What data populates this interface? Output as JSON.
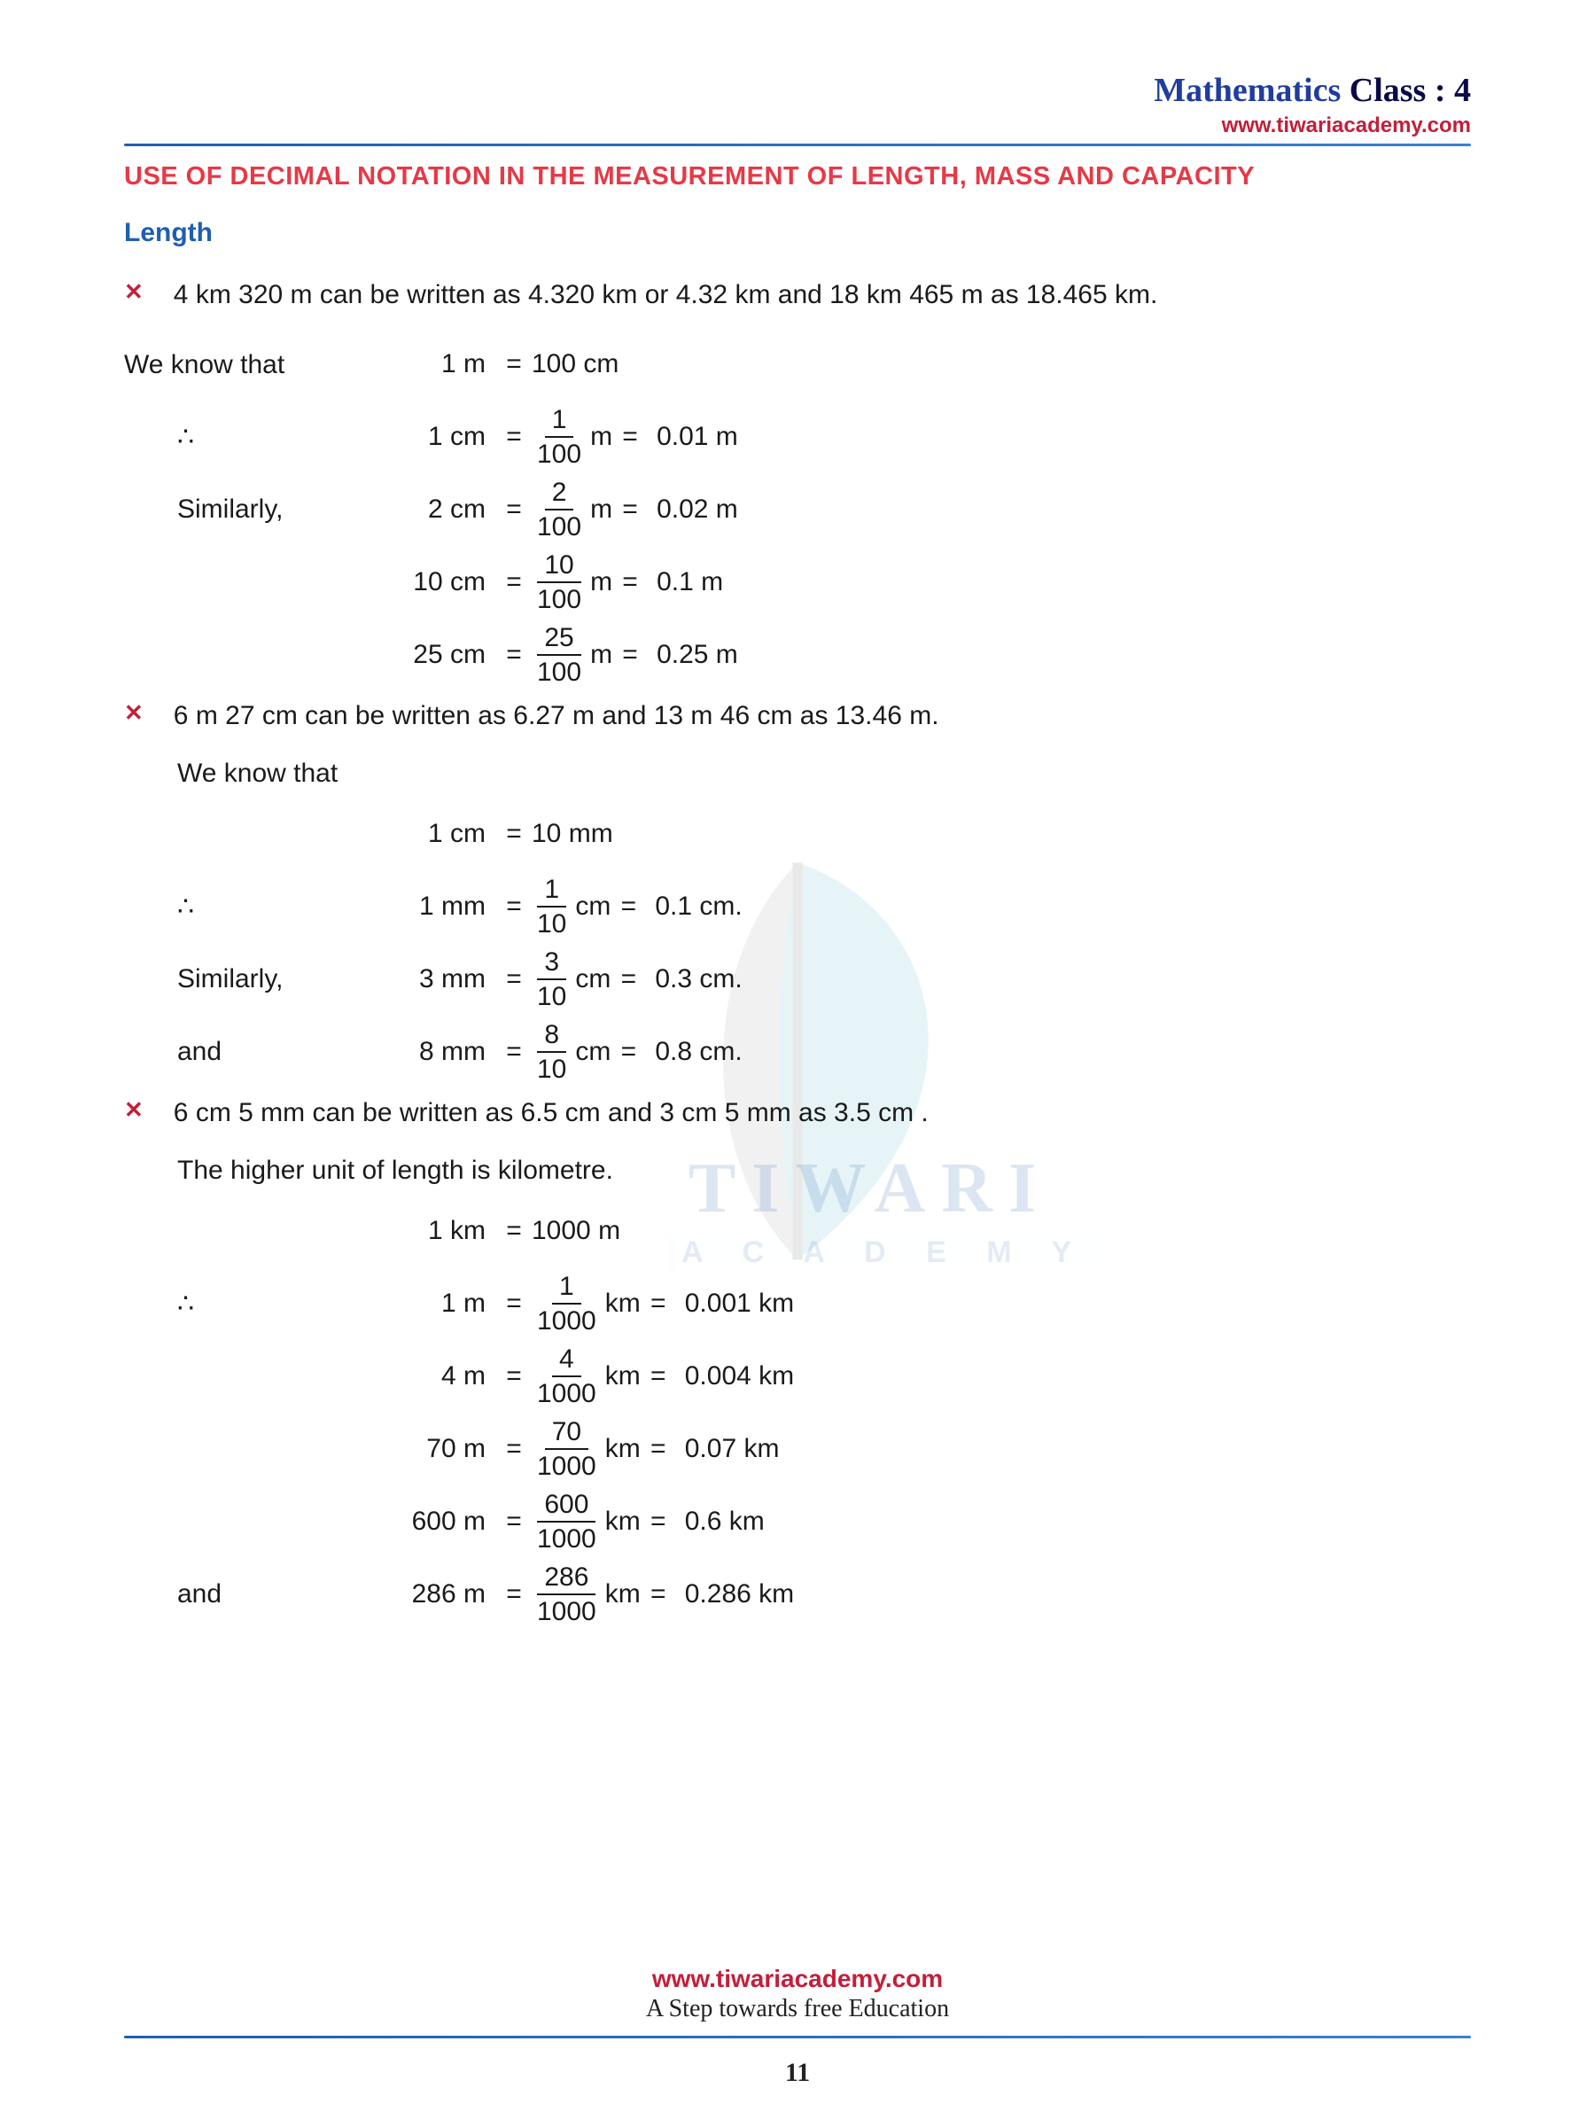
{
  "header": {
    "title_prefix": "Mathematics ",
    "title_suffix": "Class : 4",
    "url": "www.tiwariacademy.com"
  },
  "section_title": "USE OF DECIMAL NOTATION IN THE MEASUREMENT OF LENGTH, MASS AND CAPACITY",
  "sub_heading": "Length",
  "bullets": [
    "4 km 320 m can be written as 4.320 km or 4.32 km and 18 km 465 m as 18.465 km.",
    "6 m 27 cm can be written as 6.27 m and 13 m 46 cm as 13.46 m.",
    "6 cm 5 mm can be written as 6.5 cm and  3 cm 5 mm as 3.5 cm ."
  ],
  "intro_line": "We know that",
  "know_line2": "We know that",
  "higher_unit_line": "The higher unit of length is kilometre.",
  "labels": {
    "therefore": "∴",
    "similarly": "Similarly,",
    "and": "and"
  },
  "block1": {
    "base": {
      "lhs": "1 m",
      "rhs": "100 cm"
    },
    "rows": [
      {
        "label": "therefore",
        "lhs": "1 cm",
        "num": "1",
        "den": "100",
        "unit": "m",
        "dec": "0.01 m"
      },
      {
        "label": "similarly",
        "lhs": "2 cm",
        "num": "2",
        "den": "100",
        "unit": "m",
        "dec": "0.02 m"
      },
      {
        "label": "",
        "lhs": "10 cm",
        "num": "10",
        "den": "100",
        "unit": "m",
        "dec": "0.1 m"
      },
      {
        "label": "",
        "lhs": "25 cm",
        "num": "25",
        "den": "100",
        "unit": "m",
        "dec": "0.25 m"
      }
    ]
  },
  "block2": {
    "base": {
      "lhs": "1 cm",
      "rhs": "10 mm"
    },
    "rows": [
      {
        "label": "therefore",
        "lhs": "1 mm",
        "num": "1",
        "den": "10",
        "unit": "cm",
        "dec": "0.1 cm."
      },
      {
        "label": "similarly",
        "lhs": "3 mm",
        "num": "3",
        "den": "10",
        "unit": "cm",
        "dec": "0.3 cm."
      },
      {
        "label": "and",
        "lhs": "8 mm",
        "num": "8",
        "den": "10",
        "unit": "cm",
        "dec": "0.8 cm."
      }
    ]
  },
  "block3": {
    "base": {
      "lhs": "1 km",
      "rhs": "1000 m"
    },
    "rows": [
      {
        "label": "therefore",
        "lhs": "1 m",
        "num": "1",
        "den": "1000",
        "unit": "km",
        "dec": "0.001 km"
      },
      {
        "label": "",
        "lhs": "4 m",
        "num": "4",
        "den": "1000",
        "unit": "km",
        "dec": "0.004 km"
      },
      {
        "label": "",
        "lhs": "70 m",
        "num": "70",
        "den": "1000",
        "unit": "km",
        "dec": "0.07 km"
      },
      {
        "label": "",
        "lhs": "600 m",
        "num": "600",
        "den": "1000",
        "unit": "km",
        "dec": "0.6 km"
      },
      {
        "label": "and",
        "lhs": "286 m",
        "num": "286",
        "den": "1000",
        "unit": "km",
        "dec": "0.286 km"
      }
    ]
  },
  "footer": {
    "url": "www.tiwariacademy.com",
    "tag": "A Step towards free Education"
  },
  "page_number": "11",
  "watermark": {
    "text1": "TIWARI",
    "text2": "A  C  A  D  E  M  Y"
  },
  "colors": {
    "title_blue": "#1f3d9e",
    "url_red": "#c41e3a",
    "section_red": "#e63946",
    "heading_blue": "#1f5fb0",
    "body": "#1a1a1a"
  }
}
